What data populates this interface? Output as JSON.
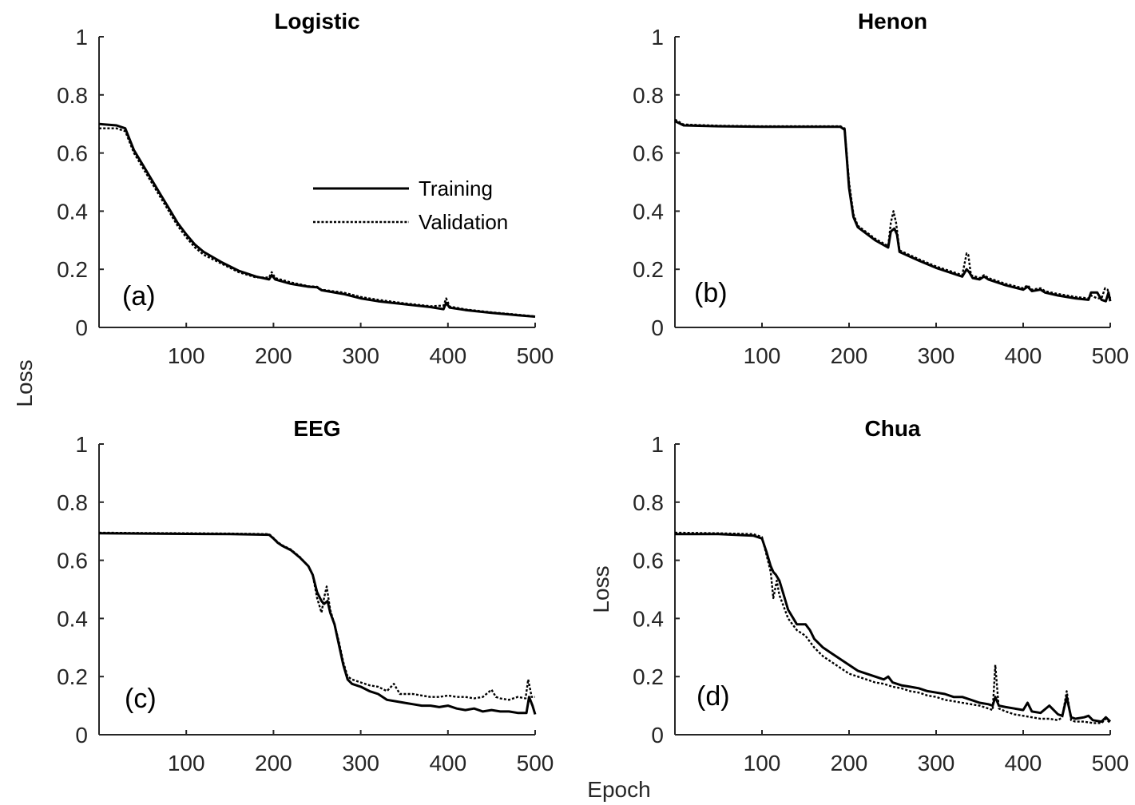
{
  "figure": {
    "shared_ylabel": "Loss",
    "shared_xlabel": "Epoch"
  },
  "chart_data": [
    {
      "type": "line",
      "title": "Logistic",
      "panel_letter": "(a)",
      "xlabel": "",
      "ylabel": "",
      "xlim": [
        0,
        500
      ],
      "ylim": [
        0,
        1
      ],
      "xticks": [
        100,
        200,
        300,
        400,
        500
      ],
      "yticks": [
        0,
        0.2,
        0.4,
        0.6,
        0.8,
        1
      ],
      "ytick_labels": [
        "0",
        "0.2",
        "0.4",
        "0.6",
        "0.8",
        "1"
      ],
      "grid": false,
      "legend": {
        "placement": "center-right",
        "entries": [
          "Training",
          "Validation"
        ]
      },
      "series": [
        {
          "name": "Training",
          "style": "solid",
          "x": [
            0,
            20,
            30,
            40,
            50,
            60,
            70,
            80,
            90,
            100,
            110,
            120,
            140,
            160,
            180,
            195,
            198,
            202,
            220,
            240,
            250,
            255,
            280,
            300,
            320,
            350,
            380,
            395,
            398,
            402,
            420,
            450,
            480,
            500
          ],
          "y": [
            0.7,
            0.695,
            0.685,
            0.61,
            0.56,
            0.51,
            0.46,
            0.41,
            0.36,
            0.32,
            0.285,
            0.26,
            0.225,
            0.195,
            0.175,
            0.165,
            0.18,
            0.165,
            0.15,
            0.14,
            0.138,
            0.128,
            0.115,
            0.1,
            0.09,
            0.08,
            0.07,
            0.063,
            0.085,
            0.068,
            0.06,
            0.05,
            0.042,
            0.037
          ]
        },
        {
          "name": "Validation",
          "style": "dotted",
          "x": [
            0,
            20,
            30,
            40,
            50,
            60,
            70,
            80,
            90,
            100,
            110,
            120,
            140,
            160,
            180,
            195,
            198,
            202,
            220,
            240,
            250,
            255,
            280,
            300,
            320,
            350,
            380,
            395,
            398,
            402,
            420,
            450,
            480,
            500
          ],
          "y": [
            0.685,
            0.685,
            0.675,
            0.6,
            0.55,
            0.5,
            0.45,
            0.4,
            0.35,
            0.31,
            0.275,
            0.25,
            0.22,
            0.19,
            0.172,
            0.172,
            0.19,
            0.17,
            0.155,
            0.142,
            0.14,
            0.13,
            0.12,
            0.105,
            0.095,
            0.083,
            0.073,
            0.075,
            0.1,
            0.072,
            0.062,
            0.052,
            0.044,
            0.038
          ]
        }
      ]
    },
    {
      "type": "line",
      "title": "Henon",
      "panel_letter": "(b)",
      "xlabel": "",
      "ylabel": "",
      "xlim": [
        0,
        500
      ],
      "ylim": [
        0,
        1
      ],
      "xticks": [
        100,
        200,
        300,
        400,
        500
      ],
      "yticks": [
        0,
        0.2,
        0.4,
        0.6,
        0.8,
        1
      ],
      "ytick_labels": [
        "0",
        "0.2",
        "0.4",
        "0.6",
        "0.8",
        "1"
      ],
      "grid": false,
      "series": [
        {
          "name": "Training",
          "style": "solid",
          "x": [
            0,
            10,
            50,
            100,
            150,
            190,
            195,
            200,
            205,
            210,
            230,
            245,
            248,
            252,
            255,
            258,
            280,
            300,
            330,
            335,
            338,
            342,
            350,
            355,
            360,
            380,
            400,
            405,
            410,
            420,
            425,
            440,
            460,
            475,
            478,
            485,
            490,
            495,
            498,
            500
          ],
          "y": [
            0.71,
            0.695,
            0.692,
            0.69,
            0.69,
            0.69,
            0.68,
            0.48,
            0.38,
            0.345,
            0.3,
            0.275,
            0.33,
            0.34,
            0.32,
            0.26,
            0.23,
            0.205,
            0.175,
            0.2,
            0.19,
            0.17,
            0.165,
            0.175,
            0.165,
            0.145,
            0.13,
            0.14,
            0.125,
            0.13,
            0.12,
            0.11,
            0.1,
            0.095,
            0.12,
            0.12,
            0.095,
            0.09,
            0.12,
            0.09
          ]
        },
        {
          "name": "Validation",
          "style": "dotted",
          "x": [
            0,
            10,
            50,
            100,
            150,
            190,
            195,
            200,
            205,
            210,
            230,
            245,
            248,
            251,
            254,
            258,
            280,
            300,
            330,
            335,
            337,
            340,
            350,
            355,
            360,
            380,
            400,
            405,
            410,
            420,
            425,
            440,
            460,
            475,
            478,
            485,
            490,
            494,
            497,
            500
          ],
          "y": [
            0.715,
            0.698,
            0.694,
            0.692,
            0.692,
            0.692,
            0.685,
            0.5,
            0.39,
            0.35,
            0.305,
            0.28,
            0.36,
            0.4,
            0.36,
            0.265,
            0.235,
            0.21,
            0.18,
            0.255,
            0.25,
            0.18,
            0.17,
            0.18,
            0.17,
            0.15,
            0.135,
            0.145,
            0.13,
            0.135,
            0.125,
            0.115,
            0.105,
            0.1,
            0.11,
            0.1,
            0.1,
            0.135,
            0.13,
            0.1
          ]
        }
      ]
    },
    {
      "type": "line",
      "title": "EEG",
      "panel_letter": "(c)",
      "xlabel": "",
      "ylabel": "",
      "xlim": [
        0,
        500
      ],
      "ylim": [
        0,
        1
      ],
      "xticks": [
        100,
        200,
        300,
        400,
        500
      ],
      "yticks": [
        0,
        0.2,
        0.4,
        0.6,
        0.8,
        1
      ],
      "ytick_labels": [
        "0",
        "0.2",
        "0.4",
        "0.6",
        "0.8",
        "1"
      ],
      "grid": false,
      "series": [
        {
          "name": "Training",
          "style": "solid",
          "x": [
            0,
            50,
            100,
            150,
            195,
            200,
            205,
            210,
            220,
            230,
            240,
            245,
            250,
            255,
            258,
            262,
            265,
            270,
            275,
            280,
            285,
            290,
            300,
            310,
            320,
            330,
            340,
            350,
            360,
            370,
            380,
            390,
            400,
            410,
            420,
            430,
            440,
            450,
            460,
            470,
            480,
            490,
            493,
            497,
            500
          ],
          "y": [
            0.693,
            0.692,
            0.691,
            0.69,
            0.688,
            0.675,
            0.66,
            0.65,
            0.635,
            0.61,
            0.58,
            0.55,
            0.49,
            0.46,
            0.45,
            0.46,
            0.42,
            0.38,
            0.31,
            0.24,
            0.19,
            0.175,
            0.165,
            0.15,
            0.14,
            0.12,
            0.115,
            0.11,
            0.105,
            0.1,
            0.1,
            0.095,
            0.1,
            0.09,
            0.085,
            0.09,
            0.08,
            0.085,
            0.08,
            0.08,
            0.075,
            0.075,
            0.13,
            0.1,
            0.07
          ]
        },
        {
          "name": "Validation",
          "style": "dotted",
          "x": [
            0,
            50,
            100,
            150,
            195,
            200,
            205,
            210,
            220,
            230,
            240,
            245,
            250,
            255,
            258,
            261,
            265,
            270,
            275,
            280,
            285,
            290,
            300,
            310,
            320,
            330,
            338,
            345,
            360,
            370,
            380,
            390,
            400,
            410,
            420,
            430,
            440,
            450,
            455,
            460,
            470,
            480,
            489,
            492,
            496,
            500
          ],
          "y": [
            0.695,
            0.694,
            0.693,
            0.692,
            0.69,
            0.677,
            0.662,
            0.652,
            0.637,
            0.612,
            0.58,
            0.55,
            0.47,
            0.42,
            0.47,
            0.51,
            0.43,
            0.38,
            0.32,
            0.25,
            0.2,
            0.19,
            0.18,
            0.17,
            0.165,
            0.15,
            0.175,
            0.14,
            0.14,
            0.135,
            0.13,
            0.13,
            0.135,
            0.13,
            0.13,
            0.125,
            0.13,
            0.155,
            0.13,
            0.125,
            0.12,
            0.13,
            0.125,
            0.19,
            0.13,
            0.13
          ]
        }
      ]
    },
    {
      "type": "line",
      "title": "Chua",
      "panel_letter": "(d)",
      "xlabel": "",
      "ylabel": "Loss",
      "xlim": [
        0,
        500
      ],
      "ylim": [
        0,
        1
      ],
      "xticks": [
        100,
        200,
        300,
        400,
        500
      ],
      "yticks": [
        0,
        0.2,
        0.4,
        0.6,
        0.8,
        1
      ],
      "ytick_labels": [
        "0",
        "0.2",
        "0.4",
        "0.6",
        "0.8",
        "1"
      ],
      "grid": false,
      "series": [
        {
          "name": "Training",
          "style": "solid",
          "x": [
            0,
            50,
            90,
            100,
            105,
            110,
            113,
            116,
            120,
            125,
            130,
            140,
            150,
            155,
            160,
            170,
            180,
            190,
            200,
            210,
            220,
            230,
            240,
            245,
            250,
            260,
            270,
            280,
            290,
            300,
            310,
            320,
            330,
            340,
            350,
            360,
            365,
            368,
            372,
            380,
            390,
            400,
            405,
            410,
            420,
            430,
            440,
            445,
            450,
            455,
            460,
            470,
            475,
            480,
            490,
            495,
            500
          ],
          "y": [
            0.69,
            0.69,
            0.685,
            0.675,
            0.63,
            0.58,
            0.56,
            0.55,
            0.53,
            0.48,
            0.43,
            0.38,
            0.38,
            0.36,
            0.33,
            0.3,
            0.28,
            0.26,
            0.24,
            0.22,
            0.21,
            0.2,
            0.19,
            0.2,
            0.18,
            0.17,
            0.165,
            0.16,
            0.15,
            0.145,
            0.14,
            0.13,
            0.13,
            0.12,
            0.11,
            0.105,
            0.1,
            0.13,
            0.1,
            0.095,
            0.09,
            0.085,
            0.11,
            0.08,
            0.075,
            0.1,
            0.07,
            0.065,
            0.13,
            0.06,
            0.055,
            0.06,
            0.065,
            0.05,
            0.045,
            0.06,
            0.045
          ]
        },
        {
          "name": "Validation",
          "style": "dotted",
          "x": [
            0,
            50,
            90,
            100,
            105,
            110,
            113,
            117,
            120,
            125,
            130,
            140,
            150,
            160,
            170,
            180,
            190,
            200,
            210,
            220,
            230,
            240,
            250,
            260,
            270,
            280,
            290,
            300,
            310,
            320,
            330,
            340,
            350,
            360,
            365,
            368,
            372,
            380,
            390,
            400,
            410,
            420,
            430,
            440,
            445,
            450,
            455,
            460,
            470,
            480,
            490,
            495,
            500
          ],
          "y": [
            0.695,
            0.693,
            0.69,
            0.68,
            0.62,
            0.56,
            0.47,
            0.53,
            0.48,
            0.44,
            0.4,
            0.36,
            0.34,
            0.3,
            0.27,
            0.25,
            0.23,
            0.21,
            0.2,
            0.19,
            0.18,
            0.175,
            0.165,
            0.16,
            0.15,
            0.145,
            0.135,
            0.13,
            0.12,
            0.115,
            0.11,
            0.105,
            0.1,
            0.09,
            0.085,
            0.24,
            0.09,
            0.08,
            0.07,
            0.065,
            0.06,
            0.055,
            0.055,
            0.05,
            0.06,
            0.15,
            0.05,
            0.045,
            0.045,
            0.04,
            0.04,
            0.055,
            0.04
          ]
        }
      ]
    }
  ]
}
